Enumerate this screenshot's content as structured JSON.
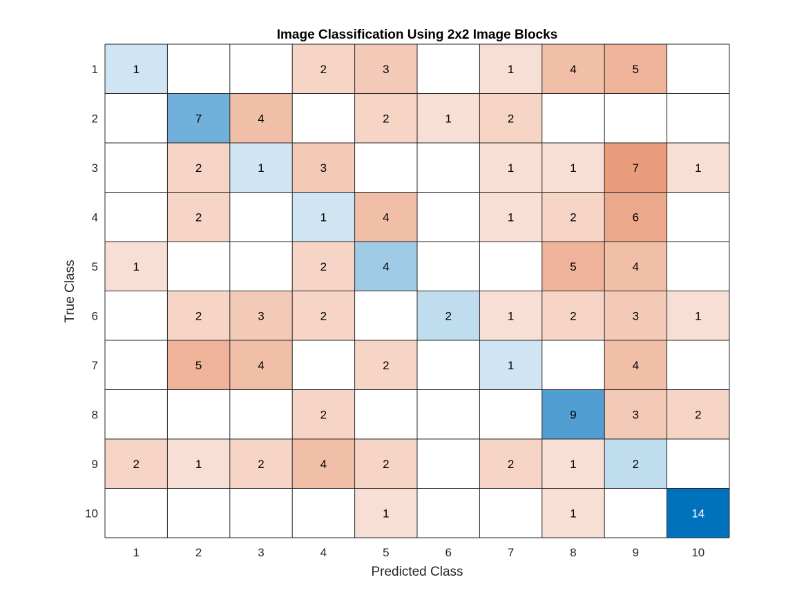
{
  "chart_data": {
    "type": "heatmap",
    "title": "Image Classification Using 2x2 Image Blocks",
    "xlabel": "Predicted Class",
    "ylabel": "True Class",
    "x_categories": [
      "1",
      "2",
      "3",
      "4",
      "5",
      "6",
      "7",
      "8",
      "9",
      "10"
    ],
    "y_categories": [
      "1",
      "2",
      "3",
      "4",
      "5",
      "6",
      "7",
      "8",
      "9",
      "10"
    ],
    "matrix": [
      [
        1,
        0,
        0,
        2,
        3,
        0,
        1,
        4,
        5,
        0
      ],
      [
        0,
        7,
        4,
        0,
        2,
        1,
        2,
        0,
        0,
        0
      ],
      [
        0,
        2,
        1,
        3,
        0,
        0,
        1,
        1,
        7,
        1
      ],
      [
        0,
        2,
        0,
        1,
        4,
        0,
        1,
        2,
        6,
        0
      ],
      [
        1,
        0,
        0,
        2,
        4,
        0,
        0,
        5,
        4,
        0
      ],
      [
        0,
        2,
        3,
        2,
        0,
        2,
        1,
        2,
        3,
        1
      ],
      [
        0,
        5,
        4,
        0,
        2,
        0,
        1,
        0,
        4,
        0
      ],
      [
        0,
        0,
        0,
        2,
        0,
        0,
        0,
        9,
        3,
        2
      ],
      [
        2,
        1,
        2,
        4,
        2,
        0,
        2,
        1,
        2,
        0
      ],
      [
        0,
        0,
        0,
        0,
        1,
        0,
        0,
        1,
        0,
        14
      ]
    ],
    "empty_cell_when_zero": true,
    "diagonal_color": "#0072BD",
    "off_diagonal_color": "#D95319",
    "text_color_dark": "#000000",
    "text_color_light": "#ffffff",
    "grid_color": "#262626"
  }
}
